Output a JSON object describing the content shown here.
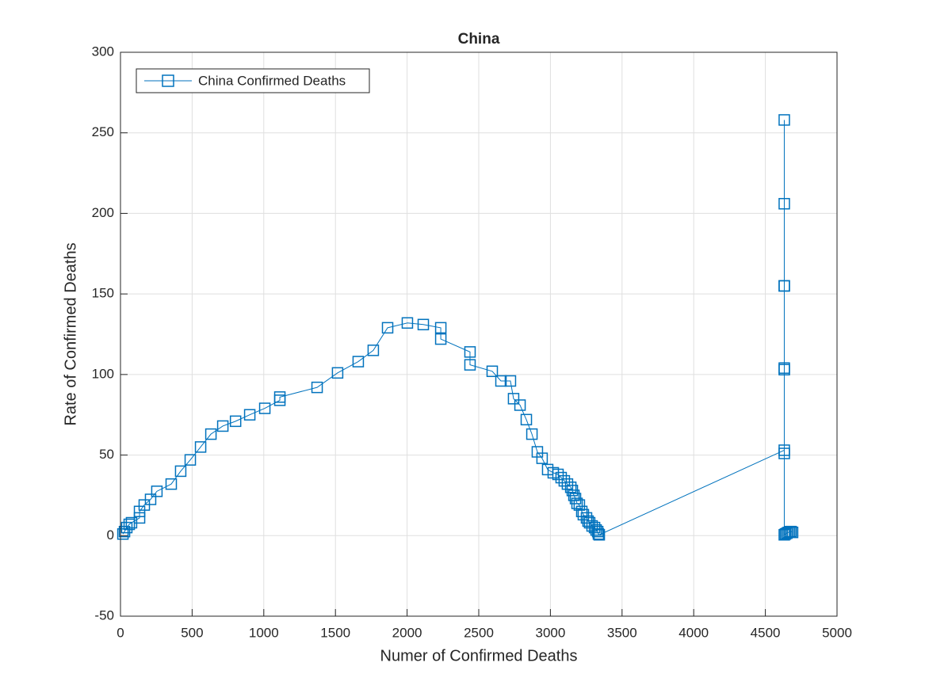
{
  "chart_data": {
    "type": "line",
    "title": "China",
    "xlabel": "Numer of Confirmed Deaths",
    "ylabel": "Rate of Confirmed Deaths",
    "xlim": [
      0,
      5000
    ],
    "xticks": [
      0,
      500,
      1000,
      1500,
      2000,
      2500,
      3000,
      3500,
      4000,
      4500,
      5000
    ],
    "ylim": [
      -50,
      300
    ],
    "yticks": [
      -50,
      0,
      50,
      100,
      150,
      200,
      250,
      300
    ],
    "grid": true,
    "legend": "north-west",
    "series": [
      {
        "name": "China Confirmed Deaths",
        "color": "#0072bd",
        "x": [
          17,
          28,
          44,
          61,
          77,
          133,
          133,
          166,
          210,
          254,
          354,
          420,
          487,
          559,
          631,
          714,
          803,
          902,
          1007,
          1112,
          1112,
          1372,
          1515,
          1659,
          1764,
          1864,
          2002,
          2113,
          2235,
          2235,
          2439,
          2439,
          2594,
          2655,
          2721,
          2743,
          2788,
          2832,
          2871,
          2909,
          2942,
          2981,
          3020,
          3053,
          3075,
          3097,
          3119,
          3142,
          3153,
          3164,
          3175,
          3186,
          3202,
          3219,
          3230,
          3252,
          3263,
          3274,
          3291,
          3308,
          3319,
          3330,
          3335,
          3341,
          4632,
          4632,
          4632,
          4632,
          4632,
          4632,
          4632,
          4632,
          4632,
          4640,
          4650,
          4660,
          4670,
          4680,
          4690
        ],
        "values": [
          1,
          2.5,
          5,
          7,
          8,
          11,
          15,
          19,
          22.5,
          27.5,
          32,
          40,
          47,
          55,
          63,
          68,
          71,
          75,
          79,
          84,
          86,
          92,
          101,
          108,
          115,
          129,
          132,
          131,
          129,
          122,
          114,
          106,
          102,
          96,
          96,
          85,
          81,
          72,
          63,
          52,
          48,
          41,
          39,
          38,
          36,
          34,
          32,
          30,
          28,
          25,
          23,
          20,
          19,
          15,
          13,
          11,
          9,
          8,
          6,
          5,
          3.5,
          2.5,
          1,
          0.5,
          53,
          104,
          155,
          206,
          258,
          155,
          103,
          51,
          0.5,
          1,
          1.5,
          2,
          2.5,
          2.5,
          2
        ]
      }
    ]
  }
}
